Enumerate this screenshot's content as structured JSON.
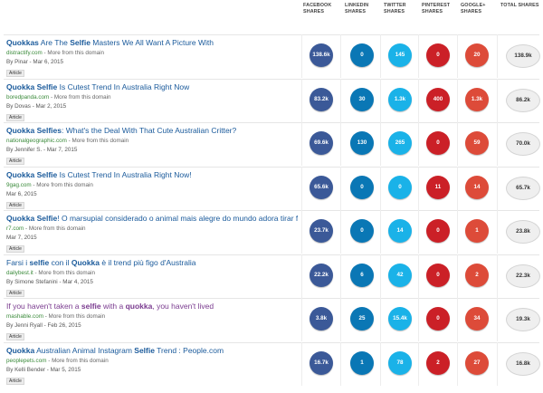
{
  "headers": {
    "facebook": [
      "FACEBOOK",
      "SHARES"
    ],
    "linkedin": [
      "LINKEDIN",
      "SHARES"
    ],
    "twitter": [
      "TWITTER",
      "SHARES"
    ],
    "pinterest": [
      "PINTEREST",
      "SHARES"
    ],
    "googleplus": [
      "GOOGLE+",
      "SHARES"
    ],
    "total": [
      "TOTAL SHARES"
    ]
  },
  "colors": {
    "facebook": "#3b5998",
    "linkedin": "#0a77b5",
    "twitter": "#1ab2e8",
    "pinterest": "#cb2027",
    "googleplus": "#dd4b39"
  },
  "articles": [
    {
      "title_parts": [
        {
          "t": "Quokkas",
          "b": true
        },
        {
          "t": " Are The ",
          "b": false
        },
        {
          "t": "Selfie",
          "b": true
        },
        {
          "t": " Masters We All Want A Picture With",
          "b": false
        }
      ],
      "domain": "distractify.com",
      "more": " - More from this domain",
      "byline": "By Pinar - Mar 6, 2015",
      "tag": "Article",
      "facebook": "138.6k",
      "linkedin": "0",
      "twitter": "145",
      "pinterest": "0",
      "googleplus": "20",
      "total": "138.9k"
    },
    {
      "title_parts": [
        {
          "t": "Quokka",
          "b": true
        },
        {
          "t": " ",
          "b": false
        },
        {
          "t": "Selfie",
          "b": true
        },
        {
          "t": " Is Cutest Trend In Australia Right Now",
          "b": false
        }
      ],
      "domain": "boredpanda.com",
      "more": " - More from this domain",
      "byline": "By Dovas - Mar 2, 2015",
      "tag": "Article",
      "facebook": "83.2k",
      "linkedin": "30",
      "twitter": "1.3k",
      "pinterest": "400",
      "googleplus": "1.3k",
      "total": "86.2k"
    },
    {
      "title_parts": [
        {
          "t": "Quokka",
          "b": true
        },
        {
          "t": " ",
          "b": false
        },
        {
          "t": "Selfies",
          "b": true
        },
        {
          "t": ": What's the Deal With That Cute Australian Critter?",
          "b": false
        }
      ],
      "domain": "nationalgeographic.com",
      "more": " - More from this domain",
      "byline": "By Jennifer S. - Mar 7, 2015",
      "tag": "Article",
      "facebook": "69.6k",
      "linkedin": "130",
      "twitter": "265",
      "pinterest": "0",
      "googleplus": "59",
      "total": "70.0k"
    },
    {
      "title_parts": [
        {
          "t": "Quokka",
          "b": true
        },
        {
          "t": " ",
          "b": false
        },
        {
          "t": "Selfie",
          "b": true
        },
        {
          "t": " Is Cutest Trend In Australia Right Now!",
          "b": false
        }
      ],
      "domain": "9gag.com",
      "more": " - More from this domain",
      "byline": "Mar 6, 2015",
      "tag": "Article",
      "facebook": "65.6k",
      "linkedin": "0",
      "twitter": "0",
      "pinterest": "11",
      "googleplus": "14",
      "total": "65.7k"
    },
    {
      "title_parts": [
        {
          "t": "Quokka",
          "b": true
        },
        {
          "t": " ",
          "b": false
        },
        {
          "t": "Selfie",
          "b": true
        },
        {
          "t": "! O marsupial considerado o animal mais alegre do mundo adora tirar fotos",
          "b": false
        }
      ],
      "domain": "r7.com",
      "more": " - More from this domain",
      "byline": "Mar 7, 2015",
      "tag": "Article",
      "facebook": "23.7k",
      "linkedin": "0",
      "twitter": "14",
      "pinterest": "0",
      "googleplus": "1",
      "total": "23.8k"
    },
    {
      "title_parts": [
        {
          "t": "Farsi i ",
          "b": false
        },
        {
          "t": "selfie",
          "b": true
        },
        {
          "t": " con il ",
          "b": false
        },
        {
          "t": "Quokka",
          "b": true
        },
        {
          "t": " è il trend più figo d'Australia",
          "b": false
        }
      ],
      "domain": "dailybest.it",
      "more": " - More from this domain",
      "byline": "By Simone Stefanini - Mar 4, 2015",
      "tag": "Article",
      "facebook": "22.2k",
      "linkedin": "6",
      "twitter": "42",
      "pinterest": "0",
      "googleplus": "2",
      "total": "22.3k"
    },
    {
      "visited": true,
      "title_parts": [
        {
          "t": "If you haven't taken a ",
          "b": false
        },
        {
          "t": "selfie",
          "b": true
        },
        {
          "t": " with a ",
          "b": false
        },
        {
          "t": "quokka",
          "b": true
        },
        {
          "t": ", you haven't lived",
          "b": false
        }
      ],
      "domain": "mashable.com",
      "more": " - More from this domain",
      "byline": "By Jenni Ryall - Feb 26, 2015",
      "tag": "Article",
      "facebook": "3.8k",
      "linkedin": "25",
      "twitter": "15.4k",
      "pinterest": "0",
      "googleplus": "34",
      "total": "19.3k"
    },
    {
      "title_parts": [
        {
          "t": "Quokka",
          "b": true
        },
        {
          "t": " Australian Animal Instagram ",
          "b": false
        },
        {
          "t": "Selfie",
          "b": true
        },
        {
          "t": " Trend : People.com",
          "b": false
        }
      ],
      "domain": "peoplepets.com",
      "more": " - More from this domain",
      "byline": "By Kelli Bender - Mar 5, 2015",
      "tag": "Article",
      "facebook": "16.7k",
      "linkedin": "1",
      "twitter": "78",
      "pinterest": "2",
      "googleplus": "27",
      "total": "16.8k"
    }
  ]
}
